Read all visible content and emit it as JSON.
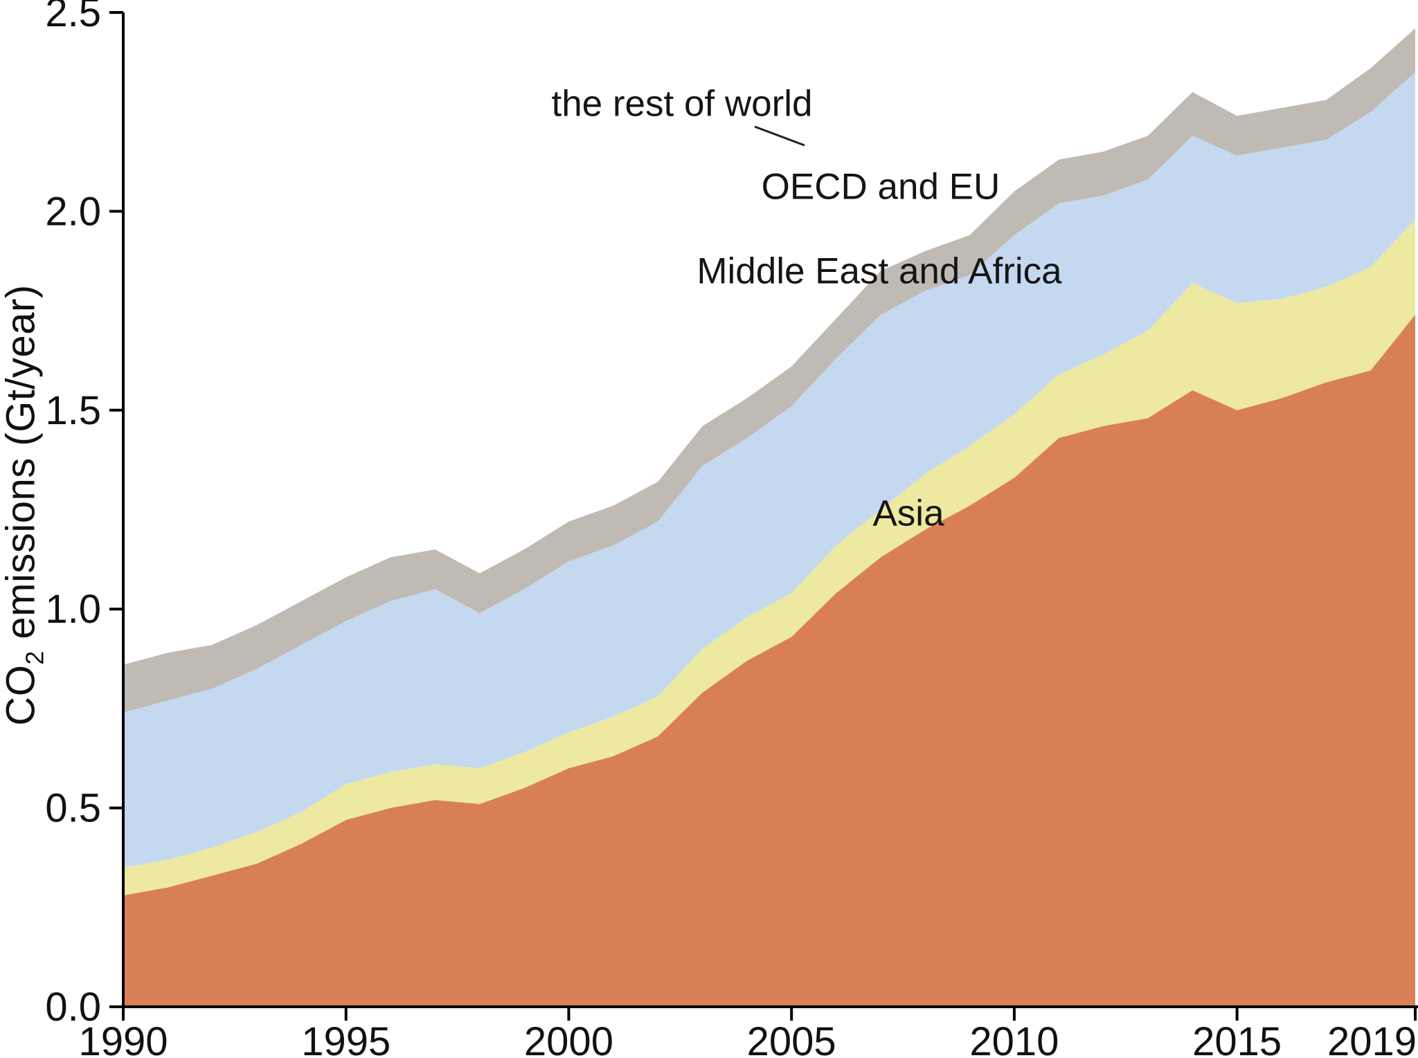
{
  "chart_data": {
    "type": "area",
    "stacked": true,
    "title": "",
    "xlabel": "",
    "ylabel_parts": {
      "prefix": "CO",
      "sub": "2",
      "suffix": " emissions (Gt/year)"
    },
    "x": [
      1990,
      1991,
      1992,
      1993,
      1994,
      1995,
      1996,
      1997,
      1998,
      1999,
      2000,
      2001,
      2002,
      2003,
      2004,
      2005,
      2006,
      2007,
      2008,
      2009,
      2010,
      2011,
      2012,
      2013,
      2014,
      2015,
      2016,
      2017,
      2018,
      2019
    ],
    "series": [
      {
        "name": "Asia",
        "color": "#d97f58",
        "values": [
          0.28,
          0.3,
          0.33,
          0.36,
          0.41,
          0.47,
          0.5,
          0.52,
          0.51,
          0.55,
          0.6,
          0.63,
          0.68,
          0.79,
          0.87,
          0.93,
          1.04,
          1.13,
          1.2,
          1.26,
          1.33,
          1.43,
          1.46,
          1.48,
          1.55,
          1.5,
          1.53,
          1.57,
          1.6,
          1.74
        ]
      },
      {
        "name": "Middle East and Africa",
        "color": "#ede9a0",
        "values": [
          0.07,
          0.07,
          0.07,
          0.08,
          0.08,
          0.09,
          0.09,
          0.09,
          0.09,
          0.09,
          0.09,
          0.1,
          0.1,
          0.11,
          0.11,
          0.11,
          0.12,
          0.12,
          0.14,
          0.15,
          0.16,
          0.16,
          0.18,
          0.22,
          0.27,
          0.27,
          0.25,
          0.24,
          0.26,
          0.24
        ]
      },
      {
        "name": "OECD and EU",
        "color": "#c4d8f0",
        "values": [
          0.39,
          0.4,
          0.4,
          0.41,
          0.42,
          0.41,
          0.43,
          0.44,
          0.39,
          0.41,
          0.43,
          0.43,
          0.44,
          0.46,
          0.45,
          0.47,
          0.47,
          0.49,
          0.46,
          0.43,
          0.45,
          0.43,
          0.4,
          0.38,
          0.37,
          0.37,
          0.38,
          0.37,
          0.39,
          0.37
        ]
      },
      {
        "name": "the rest of world",
        "color": "#bfbab3",
        "values": [
          0.12,
          0.12,
          0.11,
          0.11,
          0.11,
          0.11,
          0.11,
          0.1,
          0.1,
          0.1,
          0.1,
          0.1,
          0.1,
          0.1,
          0.1,
          0.1,
          0.1,
          0.11,
          0.1,
          0.1,
          0.11,
          0.11,
          0.11,
          0.11,
          0.11,
          0.1,
          0.1,
          0.1,
          0.11,
          0.11
        ]
      }
    ],
    "xlim": [
      1990,
      2019
    ],
    "ylim": [
      0,
      2.5
    ],
    "x_ticks": {
      "values": [
        1990,
        1995,
        2000,
        2005,
        2010,
        2015,
        2019
      ],
      "labels": [
        "1990",
        "1995",
        "2000",
        "2005",
        "2010",
        "2015",
        "2019"
      ]
    },
    "y_ticks": {
      "values": [
        0,
        0.5,
        1.0,
        1.5,
        2.0,
        2.5
      ],
      "labels": [
        "0.0",
        "0.5",
        "1.0",
        "1.5",
        "2.0",
        "2.5"
      ]
    },
    "grid": false,
    "legend": "inline-annotations",
    "annotations": [
      {
        "text": "the rest of world",
        "series": "the rest of world"
      },
      {
        "text": "OECD and EU",
        "series": "OECD and EU"
      },
      {
        "text": "Middle East and Africa",
        "series": "Middle East and Africa"
      },
      {
        "text": "Asia",
        "series": "Asia"
      }
    ],
    "axis_color": "#000000",
    "text_color": "#111111"
  }
}
